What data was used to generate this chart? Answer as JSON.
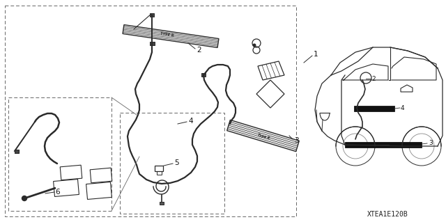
{
  "bg_color": "#ffffff",
  "line_color": "#2a2a2a",
  "dash_color": "#666666",
  "fig_width": 6.4,
  "fig_height": 3.19,
  "dpi": 100,
  "diagram_code": "XTEA1E120B"
}
